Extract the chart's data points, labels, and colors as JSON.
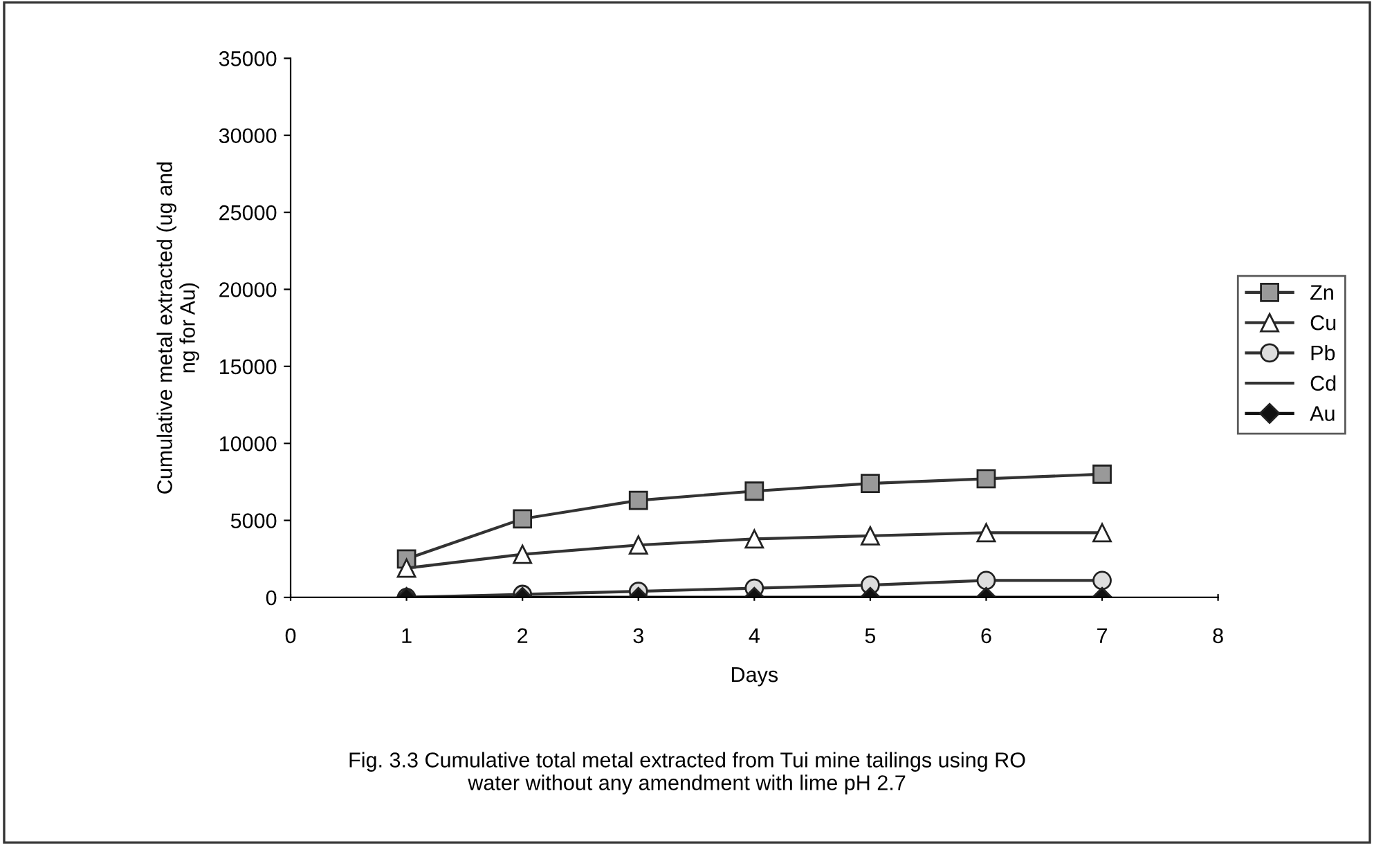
{
  "chart_data": {
    "type": "line",
    "xlabel": "Days",
    "ylabel": "Cumulative metal extracted (ug and\nng for Au)",
    "x": [
      1,
      2,
      3,
      4,
      5,
      6,
      7
    ],
    "xlim": [
      0,
      8
    ],
    "xticks": [
      0,
      1,
      2,
      3,
      4,
      5,
      6,
      7,
      8
    ],
    "ylim": [
      0,
      35000
    ],
    "yticks": [
      0,
      5000,
      10000,
      15000,
      20000,
      25000,
      30000,
      35000
    ],
    "grid": false,
    "legend": "right",
    "line_style": "solid",
    "series": [
      {
        "name": "Zn",
        "color": "#333333",
        "marker": "square",
        "values": [
          2500,
          5100,
          6300,
          6900,
          7400,
          7700,
          8000
        ]
      },
      {
        "name": "Cu",
        "color": "#333333",
        "marker": "triangle",
        "values": [
          1900,
          2800,
          3400,
          3800,
          4000,
          4200,
          4200
        ]
      },
      {
        "name": "Pb",
        "color": "#333333",
        "marker": "circle",
        "values": [
          0,
          200,
          400,
          600,
          800,
          1100,
          1100
        ]
      },
      {
        "name": "Cd",
        "color": "#333333",
        "marker": "none",
        "values": [
          0,
          0,
          0,
          0,
          0,
          0,
          0
        ]
      },
      {
        "name": "Au",
        "color": "#111111",
        "marker": "diamond",
        "values": [
          0,
          0,
          0,
          0,
          0,
          0,
          0
        ]
      }
    ],
    "annotations": [
      "Fig. 3.3 Cumulative total metal extracted from Tui mine tailings using RO\nwater without any amendment with lime pH 2.7"
    ]
  }
}
